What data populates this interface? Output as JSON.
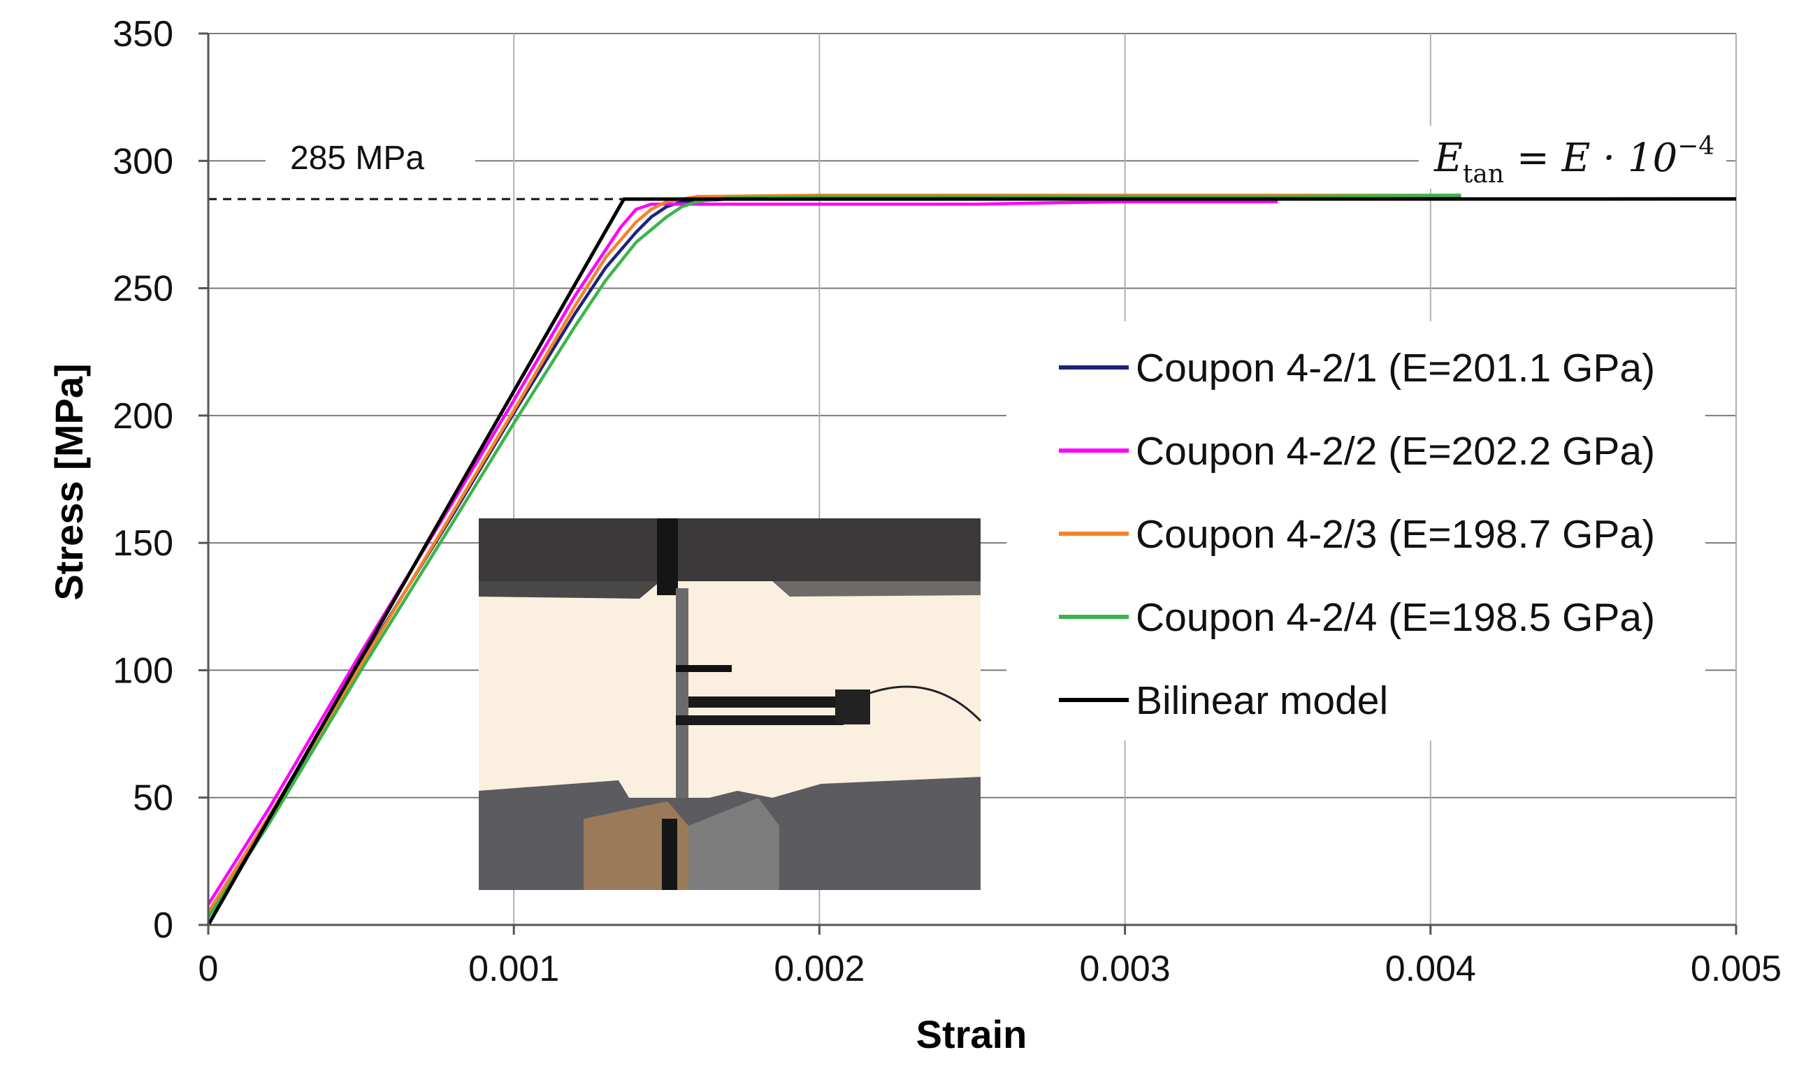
{
  "chart_data": {
    "type": "line",
    "title": "",
    "xlabel": "Strain",
    "ylabel": "Stress [MPa]",
    "xlim": [
      0,
      0.005
    ],
    "ylim": [
      0,
      350
    ],
    "x_ticks": [
      "0",
      "0.001",
      "0.002",
      "0.003",
      "0.004",
      "0.005"
    ],
    "y_ticks": [
      "0",
      "50",
      "100",
      "150",
      "200",
      "250",
      "300",
      "350"
    ],
    "grid": true,
    "legend_position": "right",
    "series": [
      {
        "name": "Coupon 4-2/1 (E=201.1 GPa)",
        "color": "#1a237e",
        "x": [
          0,
          0.0002,
          0.0005,
          0.0008,
          0.001,
          0.0012,
          0.0013,
          0.0014,
          0.00145,
          0.0015,
          0.00155,
          0.0017,
          0.002,
          0.0025,
          0.003,
          0.0035,
          0.0041
        ],
        "y": [
          5,
          42,
          103,
          161,
          201,
          240,
          258,
          272,
          278,
          282,
          284,
          285,
          285,
          285,
          285.5,
          285.5,
          286
        ]
      },
      {
        "name": "Coupon 4-2/2 (E=202.2 GPa)",
        "color": "#ff00ff",
        "x": [
          0,
          0.0002,
          0.0005,
          0.0008,
          0.001,
          0.0012,
          0.0013,
          0.00135,
          0.0014,
          0.00145,
          0.0015,
          0.0017,
          0.002,
          0.0025,
          0.003,
          0.0035
        ],
        "y": [
          8,
          46,
          107,
          166,
          206,
          247,
          265,
          274,
          281,
          283,
          283,
          283,
          283,
          283,
          284,
          284
        ]
      },
      {
        "name": "Coupon 4-2/3 (E=198.7 GPa)",
        "color": "#f5822a",
        "x": [
          0,
          0.0002,
          0.0005,
          0.0008,
          0.001,
          0.0012,
          0.0013,
          0.0014,
          0.00145,
          0.0015,
          0.0016,
          0.002,
          0.0025,
          0.003,
          0.0035,
          0.0041
        ],
        "y": [
          5,
          43,
          102,
          162,
          202,
          243,
          262,
          276,
          281,
          284,
          286,
          286.5,
          286.5,
          286.5,
          286.5,
          286.5
        ]
      },
      {
        "name": "Coupon 4-2/4 (E=198.5 GPa)",
        "color": "#3ab54a",
        "x": [
          0,
          0.0002,
          0.0005,
          0.0008,
          0.001,
          0.0012,
          0.0013,
          0.0014,
          0.0015,
          0.00155,
          0.0016,
          0.0017,
          0.002,
          0.0025,
          0.003,
          0.0035,
          0.0041
        ],
        "y": [
          3,
          40,
          100,
          158,
          197,
          235,
          253,
          268,
          278,
          282,
          284,
          285.5,
          286,
          286,
          286,
          286,
          286.5
        ]
      },
      {
        "name": "Bilinear model",
        "color": "#000000",
        "x": [
          0,
          0.00136,
          0.005
        ],
        "y": [
          0,
          285,
          285.04
        ]
      }
    ],
    "reference_line": {
      "y": 285,
      "style": "dashed",
      "x_end": 0.00136
    },
    "annotations": {
      "yield_label": "285 MPa",
      "formula_lhs": "E",
      "formula_sub": "tan",
      "formula_eq": " = ",
      "formula_rhs": "E · 10",
      "formula_exp": "−4"
    }
  }
}
